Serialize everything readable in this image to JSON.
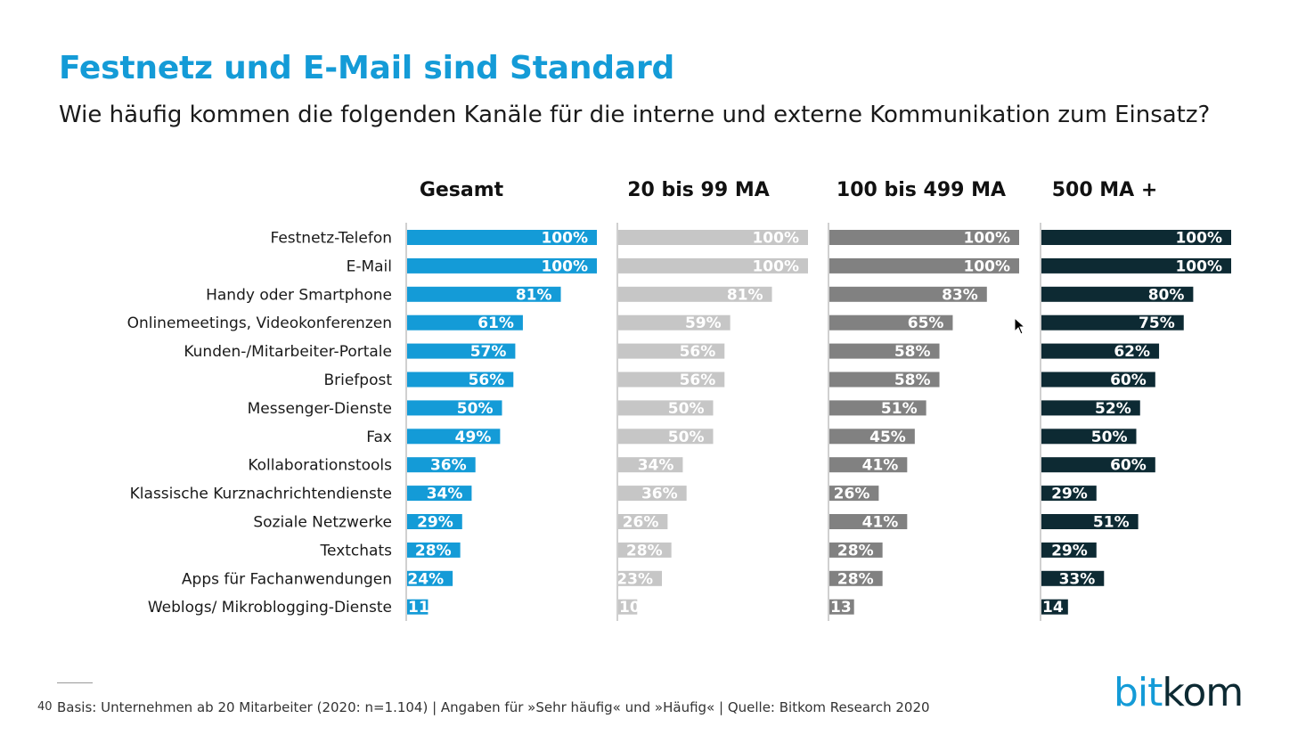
{
  "page": {
    "title": "Festnetz und E-Mail sind Standard",
    "subtitle": "Wie häufig kommen die folgenden Kanäle für die interne und externe Kommunikation zum Einsatz?",
    "page_number": "40",
    "footnote": "Basis: Unternehmen ab 20 Mitarbeiter (2020: n=1.104) | Angaben für »Sehr häufig« und »Häufig« | Quelle: Bitkom Research 2020",
    "logo_part1": "bit",
    "logo_part2": "kom",
    "logo_icon": "bitkom-logo"
  },
  "chart_data": {
    "type": "bar",
    "orientation": "horizontal",
    "unit": "%",
    "xlim": [
      0,
      100
    ],
    "grid": false,
    "categories": [
      "Festnetz-Telefon",
      "E-Mail",
      "Handy oder Smartphone",
      "Onlinemeetings, Videokonferenzen",
      "Kunden-/Mitarbeiter-Portale",
      "Briefpost",
      "Messenger-Dienste",
      "Fax",
      "Kollaborationstools",
      "Klassische Kurznachrichtendienste",
      "Soziale Netzwerke",
      "Textchats",
      "Apps für Fachanwendungen",
      "Weblogs/ Mikroblogging-Dienste"
    ],
    "series": [
      {
        "name": "Gesamt",
        "color": "#149bd7",
        "values": [
          100,
          100,
          81,
          61,
          57,
          56,
          50,
          49,
          36,
          34,
          29,
          28,
          24,
          11
        ],
        "labels": [
          "100%",
          "100%",
          "81%",
          "61%",
          "57%",
          "56%",
          "50%",
          "49%",
          "36%",
          "34%",
          "29%",
          "28%",
          "24%",
          "11"
        ]
      },
      {
        "name": "20 bis 99 MA",
        "color": "#c6c6c6",
        "values": [
          100,
          100,
          81,
          59,
          56,
          56,
          50,
          50,
          34,
          36,
          26,
          28,
          23,
          10
        ],
        "labels": [
          "100%",
          "100%",
          "81%",
          "59%",
          "56%",
          "56%",
          "50%",
          "50%",
          "34%",
          "36%",
          "26%",
          "28%",
          "23%",
          "10"
        ]
      },
      {
        "name": "100 bis 499 MA",
        "color": "#818181",
        "values": [
          100,
          100,
          83,
          65,
          58,
          58,
          51,
          45,
          41,
          26,
          41,
          28,
          28,
          13
        ],
        "labels": [
          "100%",
          "100%",
          "83%",
          "65%",
          "58%",
          "58%",
          "51%",
          "45%",
          "41%",
          "26%",
          "41%",
          "28%",
          "28%",
          "13"
        ]
      },
      {
        "name": "500 MA +",
        "color": "#0d2a33",
        "values": [
          100,
          100,
          80,
          75,
          62,
          60,
          52,
          50,
          60,
          29,
          51,
          29,
          33,
          14
        ],
        "labels": [
          "100%",
          "100%",
          "80%",
          "75%",
          "62%",
          "60%",
          "52%",
          "50%",
          "60%",
          "29%",
          "51%",
          "29%",
          "33%",
          "14"
        ]
      }
    ]
  }
}
